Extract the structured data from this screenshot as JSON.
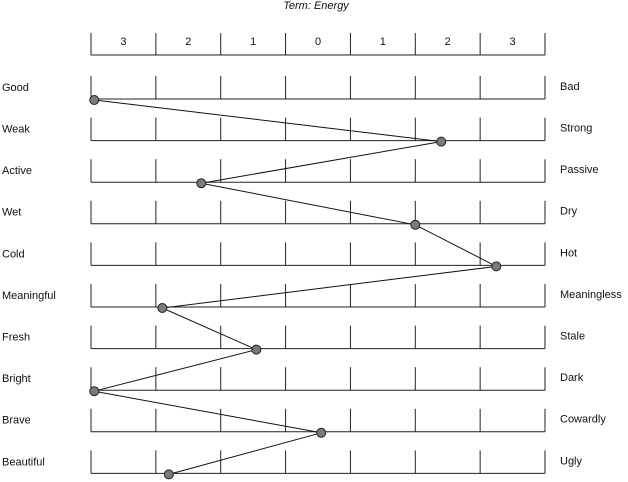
{
  "chart_data": {
    "type": "semantic-differential",
    "title": "Term:  Energy",
    "xlim": [
      -3.5,
      3.5
    ],
    "xticks": [
      {
        "value": -3,
        "label": "3"
      },
      {
        "value": -2,
        "label": "2"
      },
      {
        "value": -1,
        "label": "1"
      },
      0,
      {
        "value": 1,
        "label": "1"
      },
      {
        "value": 2,
        "label": "2"
      },
      {
        "value": 3,
        "label": "3"
      }
    ],
    "categories": [
      "Good",
      "Weak",
      "Active",
      "Wet",
      "Cold",
      "Meaningful",
      "Fresh",
      "Bright",
      "Brave",
      "Beautiful"
    ],
    "right_categories": [
      "Bad",
      "Strong",
      "Passive",
      "Dry",
      "Hot",
      "Meaningless",
      "Stale",
      "Dark",
      "Cowardly",
      "Ugly"
    ],
    "values": [
      -3.45,
      1.9,
      -1.8,
      1.5,
      2.75,
      -2.4,
      -0.95,
      -3.45,
      0.05,
      -2.3
    ],
    "color": "#7a7a7a"
  }
}
